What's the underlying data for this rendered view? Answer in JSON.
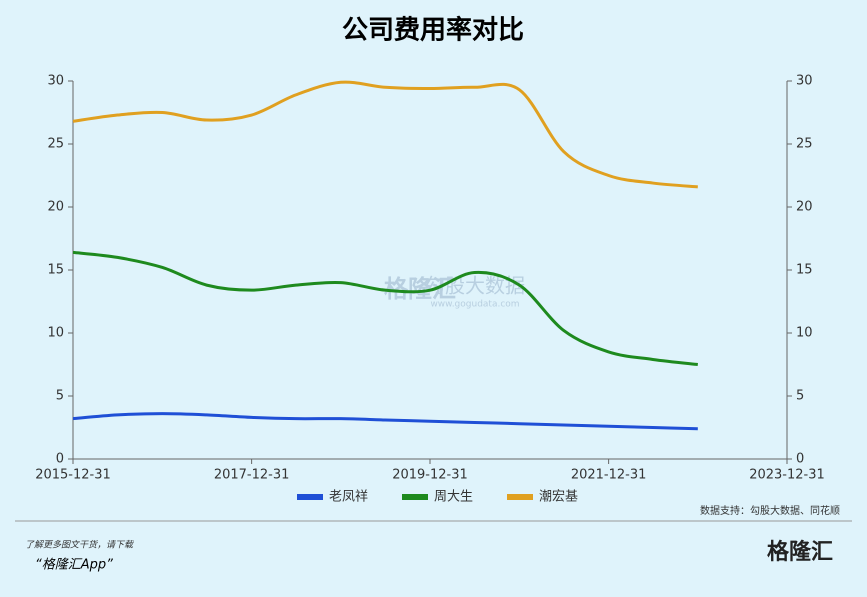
{
  "chart_data": {
    "type": "line",
    "title": "公司费用率对比",
    "x": [
      "2015-12-31",
      "2016-06-30",
      "2016-12-31",
      "2017-06-30",
      "2017-12-31",
      "2018-06-30",
      "2018-12-31",
      "2019-06-30",
      "2019-12-31",
      "2020-06-30",
      "2020-12-31",
      "2021-06-30",
      "2021-12-31",
      "2022-06-30",
      "2022-12-31"
    ],
    "series": [
      {
        "name": "老凤祥",
        "color": "#1f4fd6",
        "values": [
          3.2,
          3.5,
          3.6,
          3.5,
          3.3,
          3.2,
          3.2,
          3.1,
          3.0,
          2.9,
          2.8,
          2.7,
          2.6,
          2.5,
          2.4
        ]
      },
      {
        "name": "周大生",
        "color": "#1e8a1e",
        "values": [
          16.4,
          16.0,
          15.2,
          13.8,
          13.4,
          13.8,
          14.0,
          13.4,
          13.4,
          14.8,
          13.8,
          10.2,
          8.5,
          7.9,
          7.5
        ]
      },
      {
        "name": "潮宏基",
        "color": "#e0a020",
        "values": [
          26.8,
          27.3,
          27.5,
          26.9,
          27.3,
          28.9,
          29.9,
          29.5,
          29.4,
          29.5,
          29.3,
          24.4,
          22.5,
          21.9,
          21.6
        ]
      }
    ],
    "xlim": [
      "2015-12-31",
      "2023-12-31"
    ],
    "xticks": [
      "2015-12-31",
      "2017-12-31",
      "2019-12-31",
      "2021-12-31",
      "2023-12-31"
    ],
    "ylim": [
      0,
      30
    ],
    "yticks": [
      0,
      5,
      10,
      15,
      20,
      25,
      30
    ],
    "y2lim": [
      0,
      30
    ],
    "y2ticks": [
      0,
      5,
      10,
      15,
      20,
      25,
      30
    ],
    "legend": "bottom",
    "source": "数据支持：勾股大数据、同花顺",
    "watermark": [
      "格隆汇",
      "勾股大数据",
      "www.gogudata.com"
    ],
    "footer": {
      "note": "了解更多图文干货，请下载",
      "app": "“格隆汇App”",
      "logo": "格隆汇"
    }
  }
}
